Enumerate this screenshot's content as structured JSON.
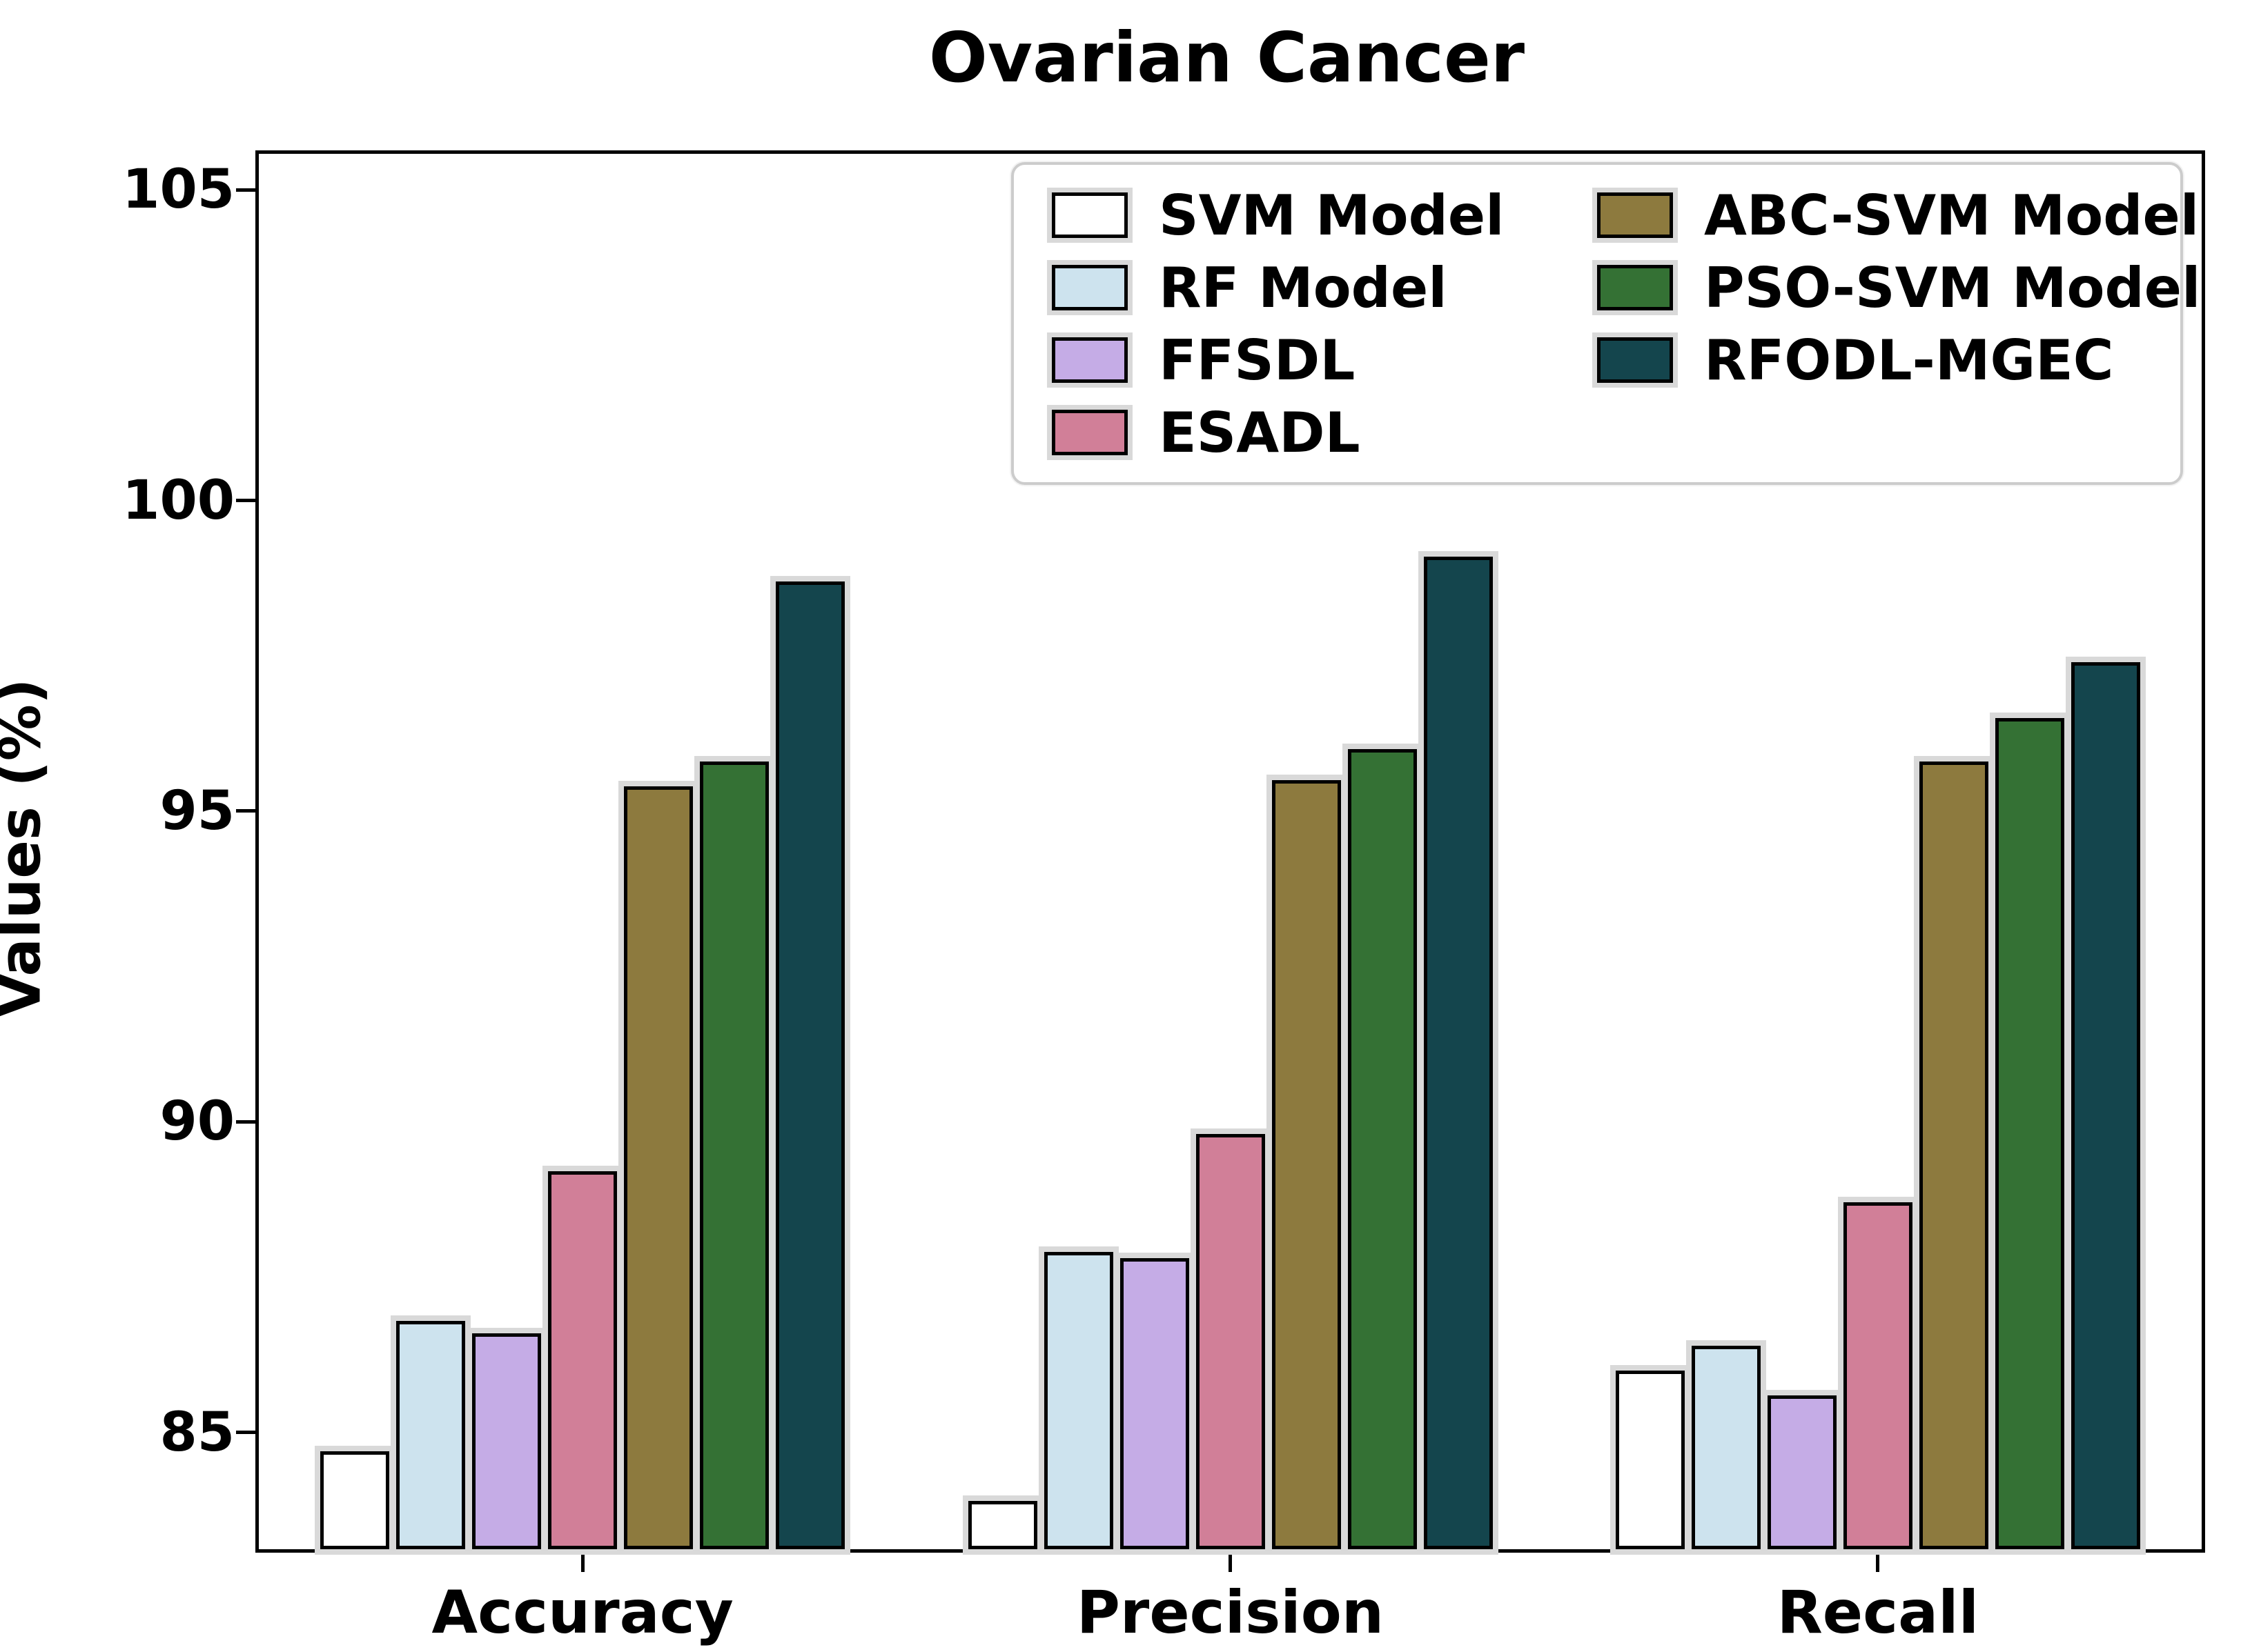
{
  "chart_data": {
    "type": "bar",
    "title": "Ovarian Cancer",
    "ylabel": "Values (%)",
    "xlabel": "",
    "categories": [
      "Accuracy",
      "Precision",
      "Recall"
    ],
    "series": [
      {
        "name": "SVM Model",
        "color": "#ffffff",
        "values": [
          84.7,
          83.9,
          86.0
        ]
      },
      {
        "name": "RF Model",
        "color": "#cde3ee",
        "values": [
          86.8,
          87.9,
          86.4
        ]
      },
      {
        "name": "FFSDL",
        "color": "#c5ace6",
        "values": [
          86.6,
          87.8,
          85.6
        ]
      },
      {
        "name": "ESADL",
        "color": "#d17f98",
        "values": [
          89.2,
          89.8,
          88.7
        ]
      },
      {
        "name": "ABC-SVM Model",
        "color": "#8d7a3e",
        "values": [
          95.4,
          95.5,
          95.8
        ]
      },
      {
        "name": "PSO-SVM Model",
        "color": "#347134",
        "values": [
          95.8,
          96.0,
          96.5
        ]
      },
      {
        "name": "RFODL-MGEC",
        "color": "#14454d",
        "values": [
          98.7,
          99.1,
          97.4
        ]
      }
    ],
    "yticks": [
      85,
      90,
      95,
      100,
      105
    ],
    "ylim": [
      83.12,
      105.58
    ],
    "grid": false,
    "legend_position": "upper right",
    "legend_columns": [
      [
        "SVM Model",
        "RF Model",
        "FFSDL",
        "ESADL"
      ],
      [
        "ABC-SVM Model",
        "PSO-SVM Model",
        "RFODL-MGEC"
      ]
    ],
    "bar_edge_color": "#000000",
    "axis_color": "#000000"
  }
}
